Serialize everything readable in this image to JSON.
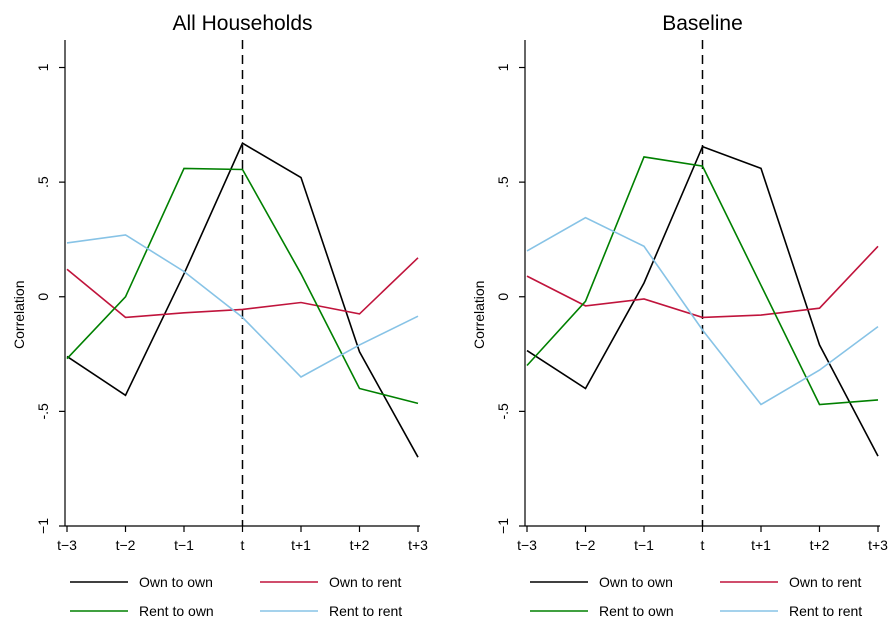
{
  "chart_data": [
    {
      "type": "line",
      "title": "All Households",
      "xlabel": "",
      "ylabel": "Correlation",
      "categories": [
        "t−3",
        "t−2",
        "t−1",
        "t",
        "t+1",
        "t+2",
        "t+3"
      ],
      "ylim": [
        -1,
        1
      ],
      "yticks": [
        {
          "value": -1,
          "label": "−1"
        },
        {
          "value": -0.5,
          "label": "-.5"
        },
        {
          "value": 0,
          "label": "0"
        },
        {
          "value": 0.5,
          "label": ".5"
        },
        {
          "value": 1,
          "label": "1"
        }
      ],
      "vline_at": "t",
      "series": [
        {
          "name": "Own to own",
          "color": "#000000",
          "values": [
            -0.26,
            -0.43,
            0.1,
            0.67,
            0.52,
            -0.24,
            -0.7
          ]
        },
        {
          "name": "Own to rent",
          "color": "#c0143c",
          "values": [
            0.12,
            -0.09,
            -0.07,
            -0.055,
            -0.025,
            -0.075,
            0.17
          ]
        },
        {
          "name": "Rent to own",
          "color": "#008000",
          "values": [
            -0.27,
            0.0,
            0.56,
            0.555,
            0.1,
            -0.4,
            -0.465
          ]
        },
        {
          "name": "Rent to rent",
          "color": "#87c3e6",
          "values": [
            0.235,
            0.27,
            0.11,
            -0.09,
            -0.35,
            -0.21,
            -0.085
          ]
        }
      ]
    },
    {
      "type": "line",
      "title": "Baseline",
      "xlabel": "",
      "ylabel": "Correlation",
      "categories": [
        "t−3",
        "t−2",
        "t−1",
        "t",
        "t+1",
        "t+2",
        "t+3"
      ],
      "ylim": [
        -1,
        1
      ],
      "yticks": [
        {
          "value": -1,
          "label": "−1"
        },
        {
          "value": -0.5,
          "label": "-.5"
        },
        {
          "value": 0,
          "label": "0"
        },
        {
          "value": 0.5,
          "label": ".5"
        },
        {
          "value": 1,
          "label": "1"
        }
      ],
      "vline_at": "t",
      "series": [
        {
          "name": "Own to own",
          "color": "#000000",
          "values": [
            -0.235,
            -0.4,
            0.06,
            0.655,
            0.56,
            -0.21,
            -0.695
          ]
        },
        {
          "name": "Own to rent",
          "color": "#c0143c",
          "values": [
            0.09,
            -0.04,
            -0.01,
            -0.09,
            -0.08,
            -0.05,
            0.22
          ]
        },
        {
          "name": "Rent to own",
          "color": "#008000",
          "values": [
            -0.3,
            -0.02,
            0.61,
            0.57,
            0.05,
            -0.47,
            -0.45
          ]
        },
        {
          "name": "Rent to rent",
          "color": "#87c3e6",
          "values": [
            0.2,
            0.345,
            0.22,
            -0.145,
            -0.47,
            -0.32,
            -0.13
          ]
        }
      ]
    }
  ]
}
